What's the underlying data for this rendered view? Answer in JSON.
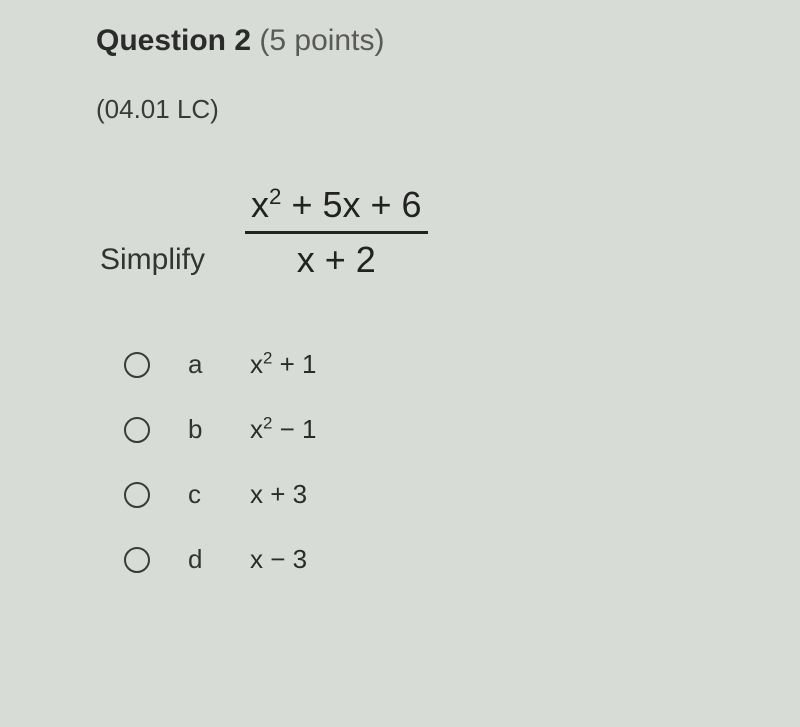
{
  "question": {
    "number_label": "Question 2",
    "points_label": "(5 points)",
    "code": "(04.01 LC)"
  },
  "prompt": {
    "simplify_label": "Simplify",
    "fraction": {
      "numerator_html": "x<sup class='exp'>2</sup>&nbsp;+&nbsp;5x&nbsp;+&nbsp;6",
      "denominator_html": "x&nbsp;+&nbsp;2"
    }
  },
  "options": [
    {
      "letter": "a",
      "answer_html": "x<sup class='exp'>2</sup> + 1"
    },
    {
      "letter": "b",
      "answer_html": "x<sup class='exp'>2</sup> − 1"
    },
    {
      "letter": "c",
      "answer_html": "x + 3"
    },
    {
      "letter": "d",
      "answer_html": "x − 3"
    }
  ]
}
